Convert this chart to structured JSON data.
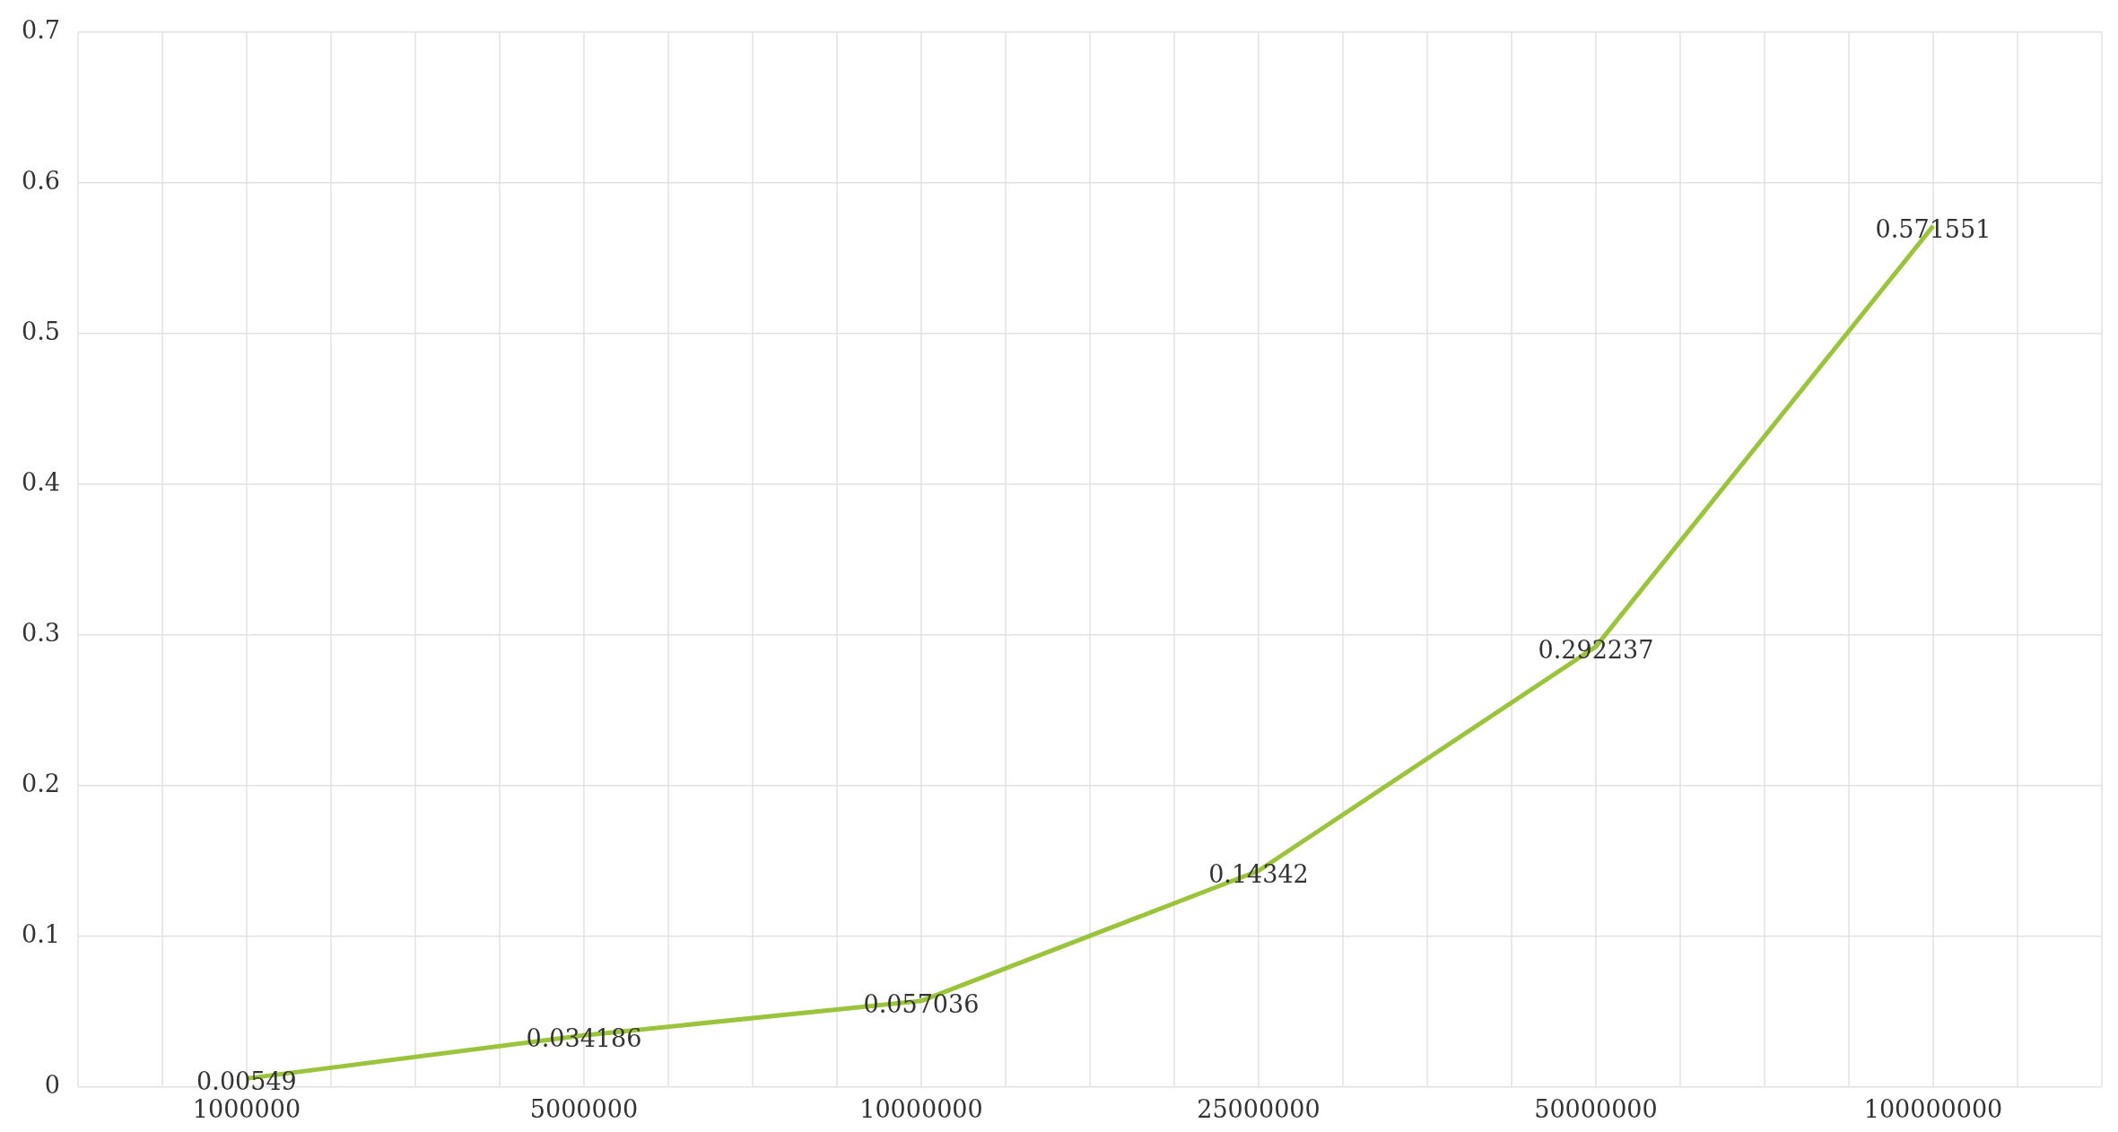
{
  "chart_data": {
    "type": "line",
    "categories": [
      "1000000",
      "5000000",
      "10000000",
      "25000000",
      "50000000",
      "100000000"
    ],
    "series": [
      {
        "color": "#9bc43c",
        "values": [
          0.00549,
          0.034186,
          0.057036,
          0.14342,
          0.292237,
          0.571551
        ]
      }
    ],
    "ylim": [
      0,
      0.7
    ],
    "yticks": [
      0,
      0.1,
      0.2,
      0.3,
      0.4,
      0.5,
      0.6,
      0.7
    ],
    "grid": true,
    "legend": false,
    "marker": "none",
    "line_style": "solid",
    "data_labels": true
  }
}
